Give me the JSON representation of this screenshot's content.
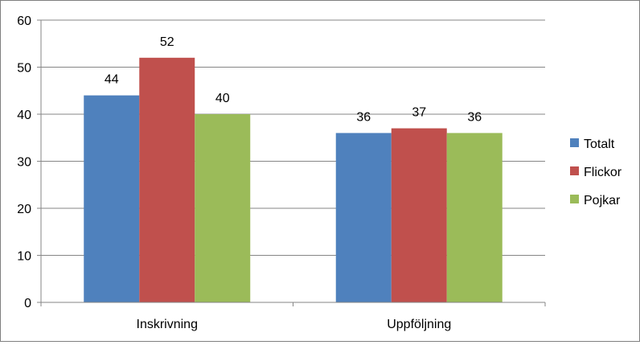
{
  "chart_data": {
    "type": "bar",
    "categories": [
      "Inskrivning",
      "Uppföljning"
    ],
    "series": [
      {
        "name": "Totalt",
        "values": [
          44,
          36
        ],
        "color": "#4F81BD"
      },
      {
        "name": "Flickor",
        "values": [
          52,
          37
        ],
        "color": "#C0504D"
      },
      {
        "name": "Pojkar",
        "values": [
          40,
          36
        ],
        "color": "#9BBB59"
      }
    ],
    "ylim": [
      0,
      60
    ],
    "yticks": [
      0,
      10,
      20,
      30,
      40,
      50,
      60
    ],
    "title": "",
    "xlabel": "",
    "ylabel": "",
    "grid": true,
    "data_labels": true,
    "legend_position": "right"
  }
}
